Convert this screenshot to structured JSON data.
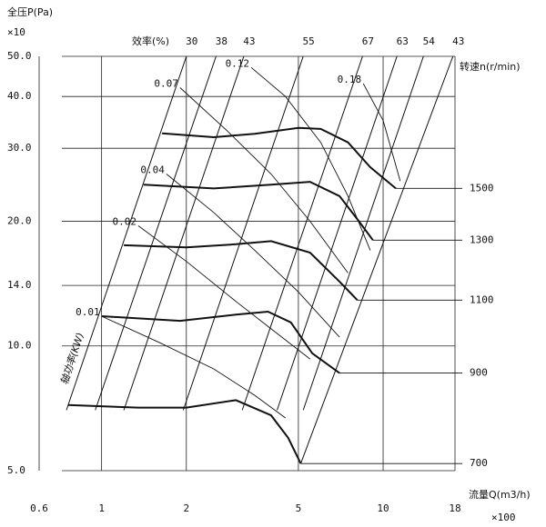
{
  "chart_data": {
    "type": "line",
    "y_label": "全压P(Pa)",
    "y_unit": "×10",
    "x_label": "流量Q(m3/h)",
    "x_unit": "×100",
    "efficiency_label": "效率(%)",
    "speed_label": "转速n(r/min)",
    "power_label": "轴功率(KW)",
    "xscale": "log",
    "yscale": "log",
    "xlim": [
      0.6,
      18
    ],
    "ylim": [
      5,
      50
    ],
    "xticks": [
      0.6,
      1,
      2,
      5,
      10,
      18
    ],
    "yticks": [
      {
        "value": 5,
        "label": "5.0"
      },
      {
        "value": 10,
        "label": "10.0"
      },
      {
        "value": 14,
        "label": "14.0"
      },
      {
        "value": 20,
        "label": "20.0"
      },
      {
        "value": 30,
        "label": "30.0"
      },
      {
        "value": 40,
        "label": "40.0"
      },
      {
        "value": 50,
        "label": "50.0"
      }
    ],
    "grid": true,
    "color": "#111111",
    "series": [
      {
        "name": "1500",
        "x": [
          1.64,
          2.5,
          3.5,
          5,
          6,
          7.5,
          9,
          11.1
        ],
        "values": [
          32.6,
          31.9,
          32.5,
          33.6,
          33.4,
          31,
          27,
          24
        ]
      },
      {
        "name": "1300",
        "x": [
          1.41,
          2.5,
          4,
          5.5,
          7,
          8.2,
          9.2
        ],
        "values": [
          24.5,
          24,
          24.5,
          24.9,
          23,
          20,
          18
        ]
      },
      {
        "name": "1100",
        "x": [
          1.2,
          2,
          3,
          4,
          5.5,
          7,
          8.1
        ],
        "values": [
          17.5,
          17.3,
          17.6,
          17.9,
          16.8,
          14.3,
          12.9
        ]
      },
      {
        "name": "900",
        "x": [
          1.0,
          1.9,
          3,
          3.9,
          4.7,
          5.6,
          7
        ],
        "values": [
          11.8,
          11.5,
          11.9,
          12.1,
          11.4,
          9.6,
          8.6
        ]
      },
      {
        "name": "700",
        "x": [
          0.76,
          1.35,
          2,
          3,
          4,
          4.6,
          5.1
        ],
        "values": [
          7.2,
          7.1,
          7.1,
          7.4,
          6.8,
          6,
          5.2
        ]
      }
    ],
    "power_curves": [
      {
        "name": "0.01",
        "x": [
          1.0,
          1.6,
          2.5,
          3.5,
          4.5
        ],
        "values": [
          11.8,
          10.2,
          8.8,
          7.6,
          6.7
        ]
      },
      {
        "name": "0.02",
        "x": [
          1.35,
          2,
          3,
          4,
          5.5
        ],
        "values": [
          19.5,
          16,
          12.8,
          11,
          9.3
        ]
      },
      {
        "name": "0.04",
        "x": [
          1.7,
          2.5,
          3.5,
          5,
          7
        ],
        "values": [
          26,
          21,
          17,
          13.5,
          10.5
        ]
      },
      {
        "name": "0.07",
        "x": [
          1.9,
          2.8,
          4,
          5.5,
          7.5
        ],
        "values": [
          42,
          33,
          26,
          20,
          15
        ]
      },
      {
        "name": "0.12",
        "x": [
          3.4,
          4.5,
          6,
          7.5,
          9
        ],
        "values": [
          47,
          40,
          31,
          23,
          17
        ]
      },
      {
        "name": "0.18",
        "x": [
          8.5,
          10,
          11.5
        ],
        "values": [
          43,
          35,
          25
        ]
      }
    ],
    "efficiency_lines": [
      {
        "name": "30",
        "x": [
          0.75,
          2.0
        ],
        "values": [
          7,
          50
        ]
      },
      {
        "name": "38",
        "x": [
          0.95,
          2.55
        ],
        "values": [
          7,
          50
        ]
      },
      {
        "name": "43",
        "x": [
          1.2,
          3.2
        ],
        "values": [
          7,
          50
        ]
      },
      {
        "name": "55",
        "x": [
          1.95,
          5.2
        ],
        "values": [
          7,
          50
        ]
      },
      {
        "name": "67",
        "x": [
          3.16,
          8.45
        ],
        "values": [
          7,
          50
        ]
      },
      {
        "name": "63",
        "x": [
          4.2,
          11.2
        ],
        "values": [
          7,
          50
        ]
      },
      {
        "name": "54",
        "x": [
          5.2,
          13.9
        ],
        "values": [
          7,
          50
        ]
      },
      {
        "name": "43",
        "x": [
          5.1,
          17.7
        ],
        "values": [
          5.2,
          50
        ]
      }
    ]
  }
}
